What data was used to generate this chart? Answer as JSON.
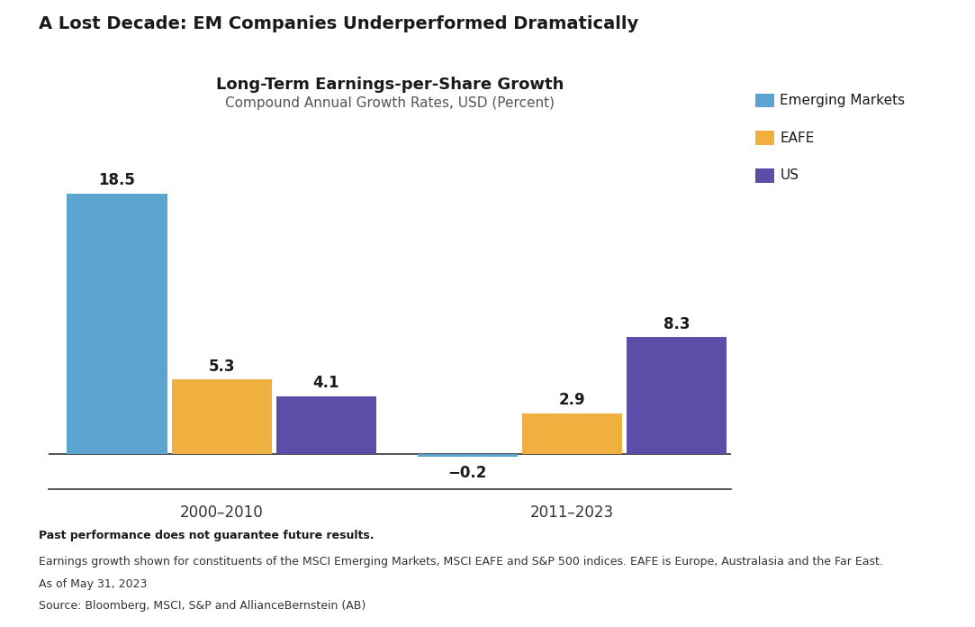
{
  "title": "A Lost Decade: EM Companies Underperformed Dramatically",
  "chart_title": "Long-Term Earnings-per-Share Growth",
  "chart_subtitle": "Compound Annual Growth Rates, USD (Percent)",
  "groups": [
    "2000–2010",
    "2011–2023"
  ],
  "series": [
    "Emerging Markets",
    "EAFE",
    "US"
  ],
  "values": {
    "2000–2010": [
      18.5,
      5.3,
      4.1
    ],
    "2011–2023": [
      -0.2,
      2.9,
      8.3
    ]
  },
  "colors": [
    "#5BA4CF",
    "#F0B040",
    "#5B4EA8"
  ],
  "bar_labels": {
    "2000–2010": [
      "18.5",
      "5.3",
      "4.1"
    ],
    "2011–2023": [
      "−0.2",
      "2.9",
      "8.3"
    ]
  },
  "ylim": [
    -2.5,
    22
  ],
  "footnote_bold": "Past performance does not guarantee future results.",
  "footnote_lines": [
    "Earnings growth shown for constituents of the MSCI Emerging Markets, MSCI EAFE and S&P 500 indices. EAFE is Europe, Australasia and the Far East.",
    "As of May 31, 2023",
    "Source: Bloomberg, MSCI, S&P and AllianceBernstein (AB)"
  ],
  "background_color": "#FFFFFF",
  "group_centers": [
    0.28,
    1.05
  ],
  "bar_width": 0.22,
  "bar_spacing": 0.01
}
